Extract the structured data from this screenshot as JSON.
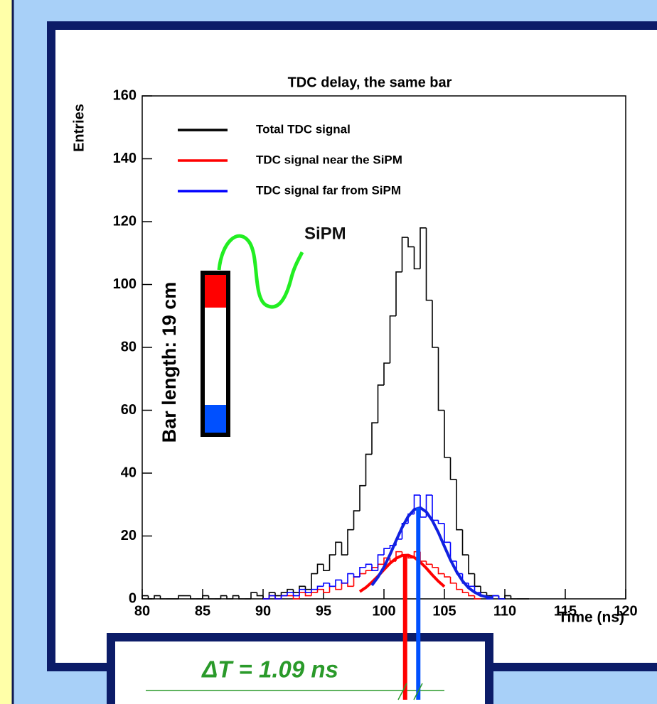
{
  "chart_data": {
    "type": "histogram",
    "title": "TDC delay, the same bar",
    "xlabel": "Time (ns)",
    "ylabel": "Entries",
    "xlim": [
      80,
      120
    ],
    "ylim": [
      0,
      160
    ],
    "xticks": [
      80,
      85,
      90,
      95,
      100,
      105,
      110,
      115,
      120
    ],
    "yticks": [
      0,
      20,
      40,
      60,
      80,
      100,
      120,
      140,
      160
    ],
    "series": [
      {
        "name": "Total TDC signal",
        "color": "#000000",
        "bins": [
          80,
          80.5,
          81,
          81.5,
          82,
          82.5,
          83,
          83.5,
          84,
          84.5,
          85,
          85.5,
          86,
          86.5,
          87,
          87.5,
          88,
          88.5,
          89,
          89.5,
          90,
          90.5,
          91,
          91.5,
          92,
          92.5,
          93,
          93.5,
          94,
          94.5,
          95,
          95.5,
          96,
          96.5,
          97,
          97.5,
          98,
          98.5,
          99,
          99.5,
          100,
          100.5,
          101,
          101.5,
          102,
          102.5,
          103,
          103.5,
          104,
          104.5,
          105,
          105.5,
          106,
          106.5,
          107,
          107.5,
          108,
          108.5,
          109,
          109.5,
          110,
          110.5,
          111,
          111.5,
          112
        ],
        "values": [
          1,
          0,
          1,
          0,
          0,
          0,
          1,
          1,
          0,
          0,
          1,
          0,
          0,
          1,
          0,
          1,
          0,
          0,
          2,
          1,
          0,
          2,
          1,
          2,
          3,
          2,
          4,
          3,
          8,
          11,
          9,
          14,
          18,
          14,
          22,
          28,
          36,
          46,
          56,
          68,
          75,
          90,
          104,
          115,
          112,
          105,
          118,
          95,
          80,
          60,
          45,
          38,
          22,
          14,
          8,
          4,
          2,
          1,
          1,
          0,
          1,
          0,
          0,
          0
        ]
      },
      {
        "name": "TDC signal near the SiPM",
        "color": "#ff0000",
        "bins": [
          90,
          90.5,
          91,
          91.5,
          92,
          92.5,
          93,
          93.5,
          94,
          94.5,
          95,
          95.5,
          96,
          96.5,
          97,
          97.5,
          98,
          98.5,
          99,
          99.5,
          100,
          100.5,
          101,
          101.5,
          102,
          102.5,
          103,
          103.5,
          104,
          104.5,
          105,
          105.5,
          106,
          106.5,
          107,
          107.5,
          108
        ],
        "values": [
          0,
          1,
          0,
          1,
          1,
          0,
          2,
          1,
          2,
          3,
          2,
          4,
          3,
          5,
          4,
          7,
          8,
          9,
          10,
          11,
          13,
          12,
          15,
          14,
          13,
          15,
          12,
          11,
          10,
          8,
          7,
          5,
          3,
          2,
          1,
          0
        ]
      },
      {
        "name": "TDC signal far from SiPM",
        "color": "#0000ff",
        "bins": [
          90,
          90.5,
          91,
          91.5,
          92,
          92.5,
          93,
          93.5,
          94,
          94.5,
          95,
          95.5,
          96,
          96.5,
          97,
          97.5,
          98,
          98.5,
          99,
          99.5,
          100,
          100.5,
          101,
          101.5,
          102,
          102.5,
          103,
          103.5,
          104,
          104.5,
          105,
          105.5,
          106,
          106.5,
          107,
          107.5,
          108,
          108.5,
          109,
          109.5,
          110
        ],
        "values": [
          0,
          1,
          0,
          1,
          2,
          1,
          3,
          2,
          3,
          4,
          5,
          4,
          6,
          5,
          8,
          7,
          10,
          11,
          9,
          14,
          16,
          17,
          19,
          24,
          27,
          33,
          26,
          33,
          25,
          24,
          18,
          12,
          8,
          5,
          4,
          2,
          1,
          0,
          1,
          0
        ]
      }
    ],
    "fits": [
      {
        "color": "#ff0000",
        "x": [
          98,
          98.5,
          99,
          99.5,
          100,
          100.5,
          101,
          101.5,
          102,
          102.5,
          103,
          103.5,
          104,
          104.5,
          105
        ],
        "values": [
          2.3,
          3.6,
          5.3,
          7.2,
          9.3,
          11.3,
          12.9,
          13.8,
          13.9,
          13.2,
          11.7,
          9.8,
          7.6,
          5.6,
          3.9
        ]
      },
      {
        "color": "#1020e0",
        "x": [
          99,
          99.5,
          100,
          100.5,
          101,
          101.5,
          102,
          102.5,
          103,
          103.5,
          104,
          104.5,
          105,
          105.5,
          106,
          106.5,
          107,
          107.5,
          108,
          108.5,
          109
        ],
        "values": [
          4.3,
          6.9,
          10.1,
          14.1,
          18.5,
          22.7,
          26.2,
          28.4,
          29.0,
          27.7,
          24.9,
          21.1,
          16.7,
          12.4,
          8.7,
          5.7,
          3.5,
          2.1,
          1.1,
          0.6,
          0.3
        ]
      }
    ],
    "markers": [
      {
        "color": "#ff0000",
        "x": 101.75
      },
      {
        "color": "#0050ff",
        "x": 102.84
      }
    ],
    "annotations": {
      "sipm": "SiPM",
      "bar_length": "Bar length: 19 cm",
      "delta_t": "ΔT = 1.09 ns"
    }
  }
}
